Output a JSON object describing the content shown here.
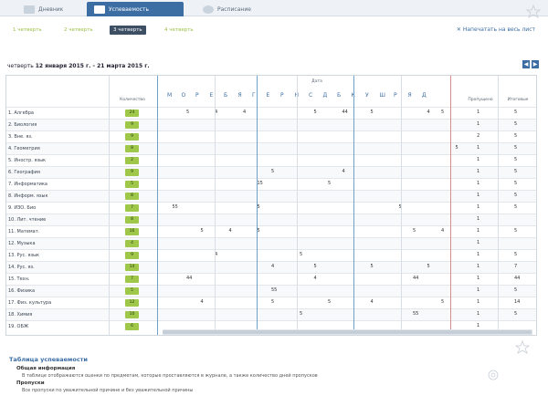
{
  "tabs": [
    {
      "label": "Дневник",
      "active": false
    },
    {
      "label": "Успеваемость",
      "active": true
    },
    {
      "label": "Расписание",
      "active": false
    }
  ],
  "periods": [
    "1 четверть",
    "2 четверть",
    "3 четверть",
    "4 четверть"
  ],
  "active_period_index": 2,
  "print_label": "Напечатать на весь лист",
  "period_line": {
    "prefix": "четверть",
    "range": "12 января 2015 г. - 21 марта 2015 г."
  },
  "table": {
    "col_subject_label": "",
    "col_count_label": "Количество",
    "dates_label": "Дата",
    "col_missed_label": "Пропущено",
    "col_avg_label": "Итоговые",
    "day_headers": [
      "М",
      "О",
      "Р",
      "Е",
      "Б",
      "Я",
      "Г",
      "Е",
      "Р",
      "Н",
      "С",
      "Д",
      "Б",
      "К",
      "У",
      "Ш",
      "Р",
      "Я",
      "Д"
    ],
    "rows": [
      {
        "name": "1. Алгебра",
        "count": "24",
        "marks": [
          {
            "col": 2,
            "v": "5"
          },
          {
            "col": 4,
            "v": "4"
          },
          {
            "col": 6,
            "v": "4"
          },
          {
            "col": 11,
            "v": "5"
          },
          {
            "col": 13,
            "v": "44"
          },
          {
            "col": 15,
            "v": "5"
          },
          {
            "col": 19,
            "v": "4"
          },
          {
            "col": 20,
            "v": "5"
          }
        ],
        "missed": "1",
        "avg": "5"
      },
      {
        "name": "2. Биология",
        "count": "9",
        "marks": [],
        "missed": "1",
        "avg": "5"
      },
      {
        "name": "3. Вне. яз.",
        "count": "9",
        "marks": [],
        "missed": "2",
        "avg": "5"
      },
      {
        "name": "4. Геометрия",
        "count": "8",
        "marks": [
          {
            "col": 21,
            "v": "5"
          }
        ],
        "missed": "1",
        "avg": "5"
      },
      {
        "name": "5. Иностр. язык",
        "count": "2",
        "marks": [],
        "missed": "1",
        "avg": "5"
      },
      {
        "name": "6. География",
        "count": "9",
        "marks": [
          {
            "col": 8,
            "v": "5"
          },
          {
            "col": 13,
            "v": "4"
          }
        ],
        "missed": "1",
        "avg": "5"
      },
      {
        "name": "7. Информатика",
        "count": "5",
        "marks": [
          {
            "col": 7,
            "v": "15"
          },
          {
            "col": 12,
            "v": "5"
          }
        ],
        "missed": "1",
        "avg": "5"
      },
      {
        "name": "8. Информ. язык",
        "count": "8",
        "marks": [],
        "missed": "1",
        "avg": "5"
      },
      {
        "name": "9. ИЗО. Био",
        "count": "7",
        "marks": [
          {
            "col": 1,
            "v": "55"
          },
          {
            "col": 7,
            "v": "5"
          },
          {
            "col": 17,
            "v": "5"
          }
        ],
        "missed": "1",
        "avg": "5"
      },
      {
        "name": "10. Лит. чтение",
        "count": "8",
        "marks": [],
        "missed": "1",
        "avg": ""
      },
      {
        "name": "11. Математ.",
        "count": "16",
        "marks": [
          {
            "col": 3,
            "v": "5"
          },
          {
            "col": 5,
            "v": "4"
          },
          {
            "col": 7,
            "v": "5"
          },
          {
            "col": 18,
            "v": "5"
          },
          {
            "col": 20,
            "v": "4"
          }
        ],
        "missed": "1",
        "avg": "5"
      },
      {
        "name": "12. Музыка",
        "count": "4",
        "marks": [],
        "missed": "1",
        "avg": ""
      },
      {
        "name": "13. Рус. язык",
        "count": "9",
        "marks": [
          {
            "col": 4,
            "v": "4"
          },
          {
            "col": 10,
            "v": "5"
          }
        ],
        "missed": "1",
        "avg": "5"
      },
      {
        "name": "14. Рус. яз.",
        "count": "14",
        "marks": [
          {
            "col": 8,
            "v": "4"
          },
          {
            "col": 11,
            "v": "5"
          },
          {
            "col": 15,
            "v": "5"
          },
          {
            "col": 19,
            "v": "5"
          }
        ],
        "missed": "1",
        "avg": "7"
      },
      {
        "name": "15. Техн.",
        "count": "7",
        "marks": [
          {
            "col": 2,
            "v": "44"
          },
          {
            "col": 11,
            "v": "4"
          },
          {
            "col": 18,
            "v": "44"
          }
        ],
        "missed": "1",
        "avg": "44"
      },
      {
        "name": "16. Физика",
        "count": "5",
        "marks": [
          {
            "col": 8,
            "v": "55"
          }
        ],
        "missed": "1",
        "avg": "5"
      },
      {
        "name": "17. Физ. культура",
        "count": "12",
        "marks": [
          {
            "col": 3,
            "v": "4"
          },
          {
            "col": 8,
            "v": "5"
          },
          {
            "col": 12,
            "v": "5"
          },
          {
            "col": 15,
            "v": "4"
          },
          {
            "col": 20,
            "v": "5"
          }
        ],
        "missed": "1",
        "avg": "14"
      },
      {
        "name": "18. Химия",
        "count": "10",
        "marks": [
          {
            "col": 10,
            "v": "5"
          },
          {
            "col": 18,
            "v": "55"
          }
        ],
        "missed": "1",
        "avg": "5"
      },
      {
        "name": "19. ОБЖ",
        "count": "6",
        "marks": [],
        "missed": "1",
        "avg": ""
      }
    ]
  },
  "legend": {
    "title": "Таблица успеваемости",
    "sub1": "Общая информация",
    "sub1_text": "В таблице отображаются оценки по предметам, которые проставляются в журнале, а также количество дней пропусков",
    "sub2": "Пропуски",
    "sub2_text": "Все пропуски по уважительной причине и без уважительной причины"
  },
  "colors": {
    "accent": "#3d6ea3",
    "green": "#9fc84a",
    "red_line": "#d88c8c",
    "blue_line": "#6fa0c8"
  }
}
